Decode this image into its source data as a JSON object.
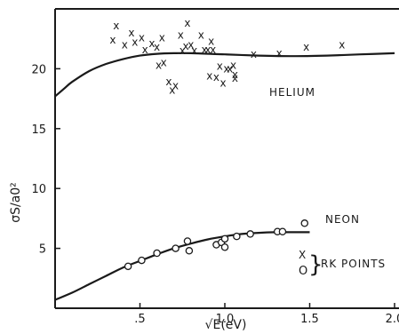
{
  "chart_data": {
    "type": "scatter",
    "title": "",
    "xlabel": "√E(eV)",
    "ylabel": "σS/a0²",
    "xlim": [
      0,
      2.0
    ],
    "ylim": [
      0,
      25
    ],
    "x_ticks": [
      ".5",
      "1.0",
      "1.5",
      "2.0"
    ],
    "y_ticks": [
      "5",
      "10",
      "15",
      "20"
    ],
    "grid": false,
    "legend": {
      "placement": "bottom-right",
      "bracket": "}",
      "caption": "RK POINTS",
      "symbols": [
        "X",
        "O"
      ]
    },
    "curve_labels": {
      "helium": "HELIUM",
      "neon": "NEON"
    },
    "series": [
      {
        "name": "HELIUM",
        "marker": "x",
        "points": [
          [
            0.34,
            22.4
          ],
          [
            0.36,
            23.6
          ],
          [
            0.41,
            22.0
          ],
          [
            0.45,
            23.0
          ],
          [
            0.47,
            22.2
          ],
          [
            0.51,
            22.6
          ],
          [
            0.53,
            21.6
          ],
          [
            0.57,
            22.1
          ],
          [
            0.6,
            21.8
          ],
          [
            0.61,
            20.3
          ],
          [
            0.63,
            22.6
          ],
          [
            0.64,
            20.5
          ],
          [
            0.67,
            18.9
          ],
          [
            0.69,
            18.2
          ],
          [
            0.71,
            18.6
          ],
          [
            0.74,
            22.8
          ],
          [
            0.75,
            21.5
          ],
          [
            0.77,
            21.9
          ],
          [
            0.78,
            23.8
          ],
          [
            0.8,
            22.0
          ],
          [
            0.82,
            21.5
          ],
          [
            0.86,
            22.8
          ],
          [
            0.88,
            21.6
          ],
          [
            0.9,
            21.6
          ],
          [
            0.91,
            19.4
          ],
          [
            0.92,
            22.3
          ],
          [
            0.93,
            21.6
          ],
          [
            0.95,
            19.3
          ],
          [
            0.97,
            20.2
          ],
          [
            0.99,
            18.8
          ],
          [
            1.01,
            20.0
          ],
          [
            1.03,
            20.0
          ],
          [
            1.05,
            20.3
          ],
          [
            1.06,
            19.5
          ],
          [
            1.06,
            19.2
          ],
          [
            1.17,
            21.2
          ],
          [
            1.32,
            21.3
          ],
          [
            1.48,
            21.8
          ],
          [
            1.69,
            22.0
          ]
        ],
        "curve": [
          [
            0.0,
            17.7
          ],
          [
            0.05,
            18.3
          ],
          [
            0.1,
            18.9
          ],
          [
            0.2,
            19.8
          ],
          [
            0.3,
            20.4
          ],
          [
            0.4,
            20.8
          ],
          [
            0.5,
            21.1
          ],
          [
            0.6,
            21.25
          ],
          [
            0.7,
            21.3
          ],
          [
            0.8,
            21.3
          ],
          [
            1.0,
            21.2
          ],
          [
            1.2,
            21.1
          ],
          [
            1.4,
            21.05
          ],
          [
            1.6,
            21.1
          ],
          [
            1.8,
            21.2
          ],
          [
            2.0,
            21.3
          ]
        ]
      },
      {
        "name": "NEON",
        "marker": "o",
        "points": [
          [
            0.43,
            3.5
          ],
          [
            0.51,
            4.0
          ],
          [
            0.6,
            4.6
          ],
          [
            0.71,
            5.0
          ],
          [
            0.78,
            5.6
          ],
          [
            0.79,
            4.8
          ],
          [
            0.95,
            5.3
          ],
          [
            0.98,
            5.5
          ],
          [
            1.0,
            5.1
          ],
          [
            1.0,
            5.8
          ],
          [
            1.07,
            6.0
          ],
          [
            1.15,
            6.2
          ],
          [
            1.31,
            6.4
          ],
          [
            1.34,
            6.4
          ],
          [
            1.47,
            7.1
          ]
        ],
        "curve": [
          [
            0.0,
            0.7
          ],
          [
            0.1,
            1.3
          ],
          [
            0.2,
            2.0
          ],
          [
            0.3,
            2.7
          ],
          [
            0.4,
            3.4
          ],
          [
            0.5,
            3.95
          ],
          [
            0.6,
            4.5
          ],
          [
            0.7,
            5.0
          ],
          [
            0.8,
            5.4
          ],
          [
            0.9,
            5.75
          ],
          [
            1.0,
            6.0
          ],
          [
            1.1,
            6.2
          ],
          [
            1.2,
            6.3
          ],
          [
            1.3,
            6.35
          ],
          [
            1.4,
            6.35
          ],
          [
            1.5,
            6.35
          ]
        ]
      }
    ]
  }
}
